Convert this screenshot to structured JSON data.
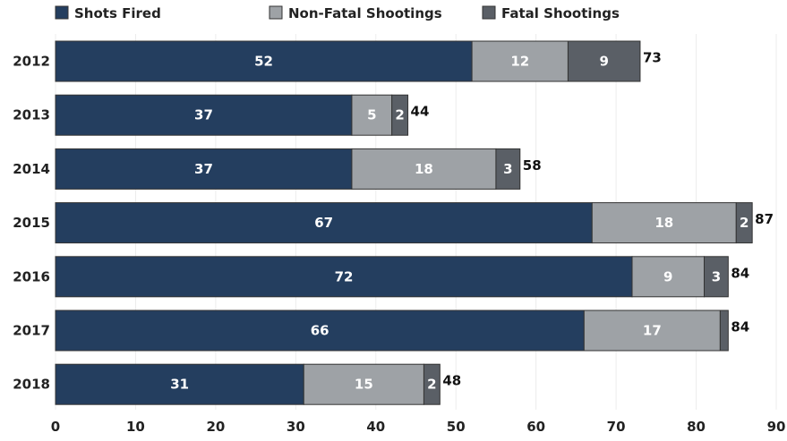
{
  "chart_data": {
    "type": "bar",
    "orientation": "horizontal",
    "stacked": true,
    "categories": [
      "2012",
      "2013",
      "2014",
      "2015",
      "2016",
      "2017",
      "2018"
    ],
    "series": [
      {
        "name": "Shots Fired",
        "color": "#243e5f",
        "values": [
          52,
          37,
          37,
          67,
          72,
          66,
          31
        ]
      },
      {
        "name": "Non-Fatal Shootings",
        "color": "#9ea2a6",
        "values": [
          12,
          5,
          18,
          18,
          9,
          17,
          15
        ]
      },
      {
        "name": "Fatal Shootings",
        "color": "#5a5f66",
        "values": [
          9,
          2,
          3,
          2,
          3,
          1,
          2
        ]
      }
    ],
    "segment_labels": [
      [
        "52",
        "12",
        "9"
      ],
      [
        "37",
        "5",
        "2"
      ],
      [
        "37",
        "18",
        "3"
      ],
      [
        "67",
        "18",
        "2"
      ],
      [
        "72",
        "9",
        "3"
      ],
      [
        "66",
        "17",
        ""
      ],
      [
        "31",
        "15",
        "2"
      ]
    ],
    "totals": [
      "73",
      "44",
      "58",
      "87",
      "84",
      "84",
      "48"
    ],
    "xlim": [
      0,
      90
    ],
    "xticks": [
      "0",
      "10",
      "20",
      "30",
      "40",
      "50",
      "60",
      "70",
      "80",
      "90"
    ],
    "grid": true,
    "legend_position": "top"
  }
}
